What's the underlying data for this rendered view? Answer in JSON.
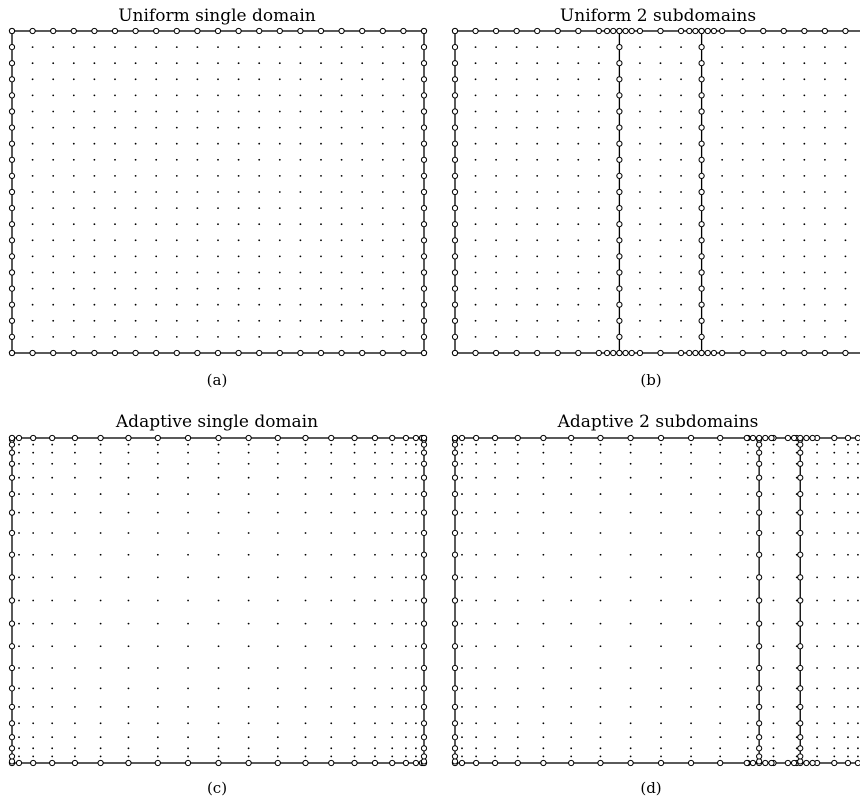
{
  "panels": [
    {
      "id": "a",
      "title": "Uniform single domain",
      "caption": "(a)",
      "grid": "uniform",
      "subdomain_walls": []
    },
    {
      "id": "b",
      "title": "Uniform 2 subdomains",
      "caption": "(b)",
      "grid": "uniform",
      "subdomain_walls": [
        0.4,
        0.6
      ]
    },
    {
      "id": "c",
      "title": "Adaptive single domain",
      "caption": "(c)",
      "grid": "adaptive",
      "subdomain_walls": []
    },
    {
      "id": "d",
      "title": "Adaptive 2 subdomains",
      "caption": "(d)",
      "grid": "adaptive",
      "subdomain_walls": [
        0.74,
        0.84
      ]
    }
  ],
  "legend": {
    "boundary_node": "circle",
    "interior_node": "dot"
  }
}
